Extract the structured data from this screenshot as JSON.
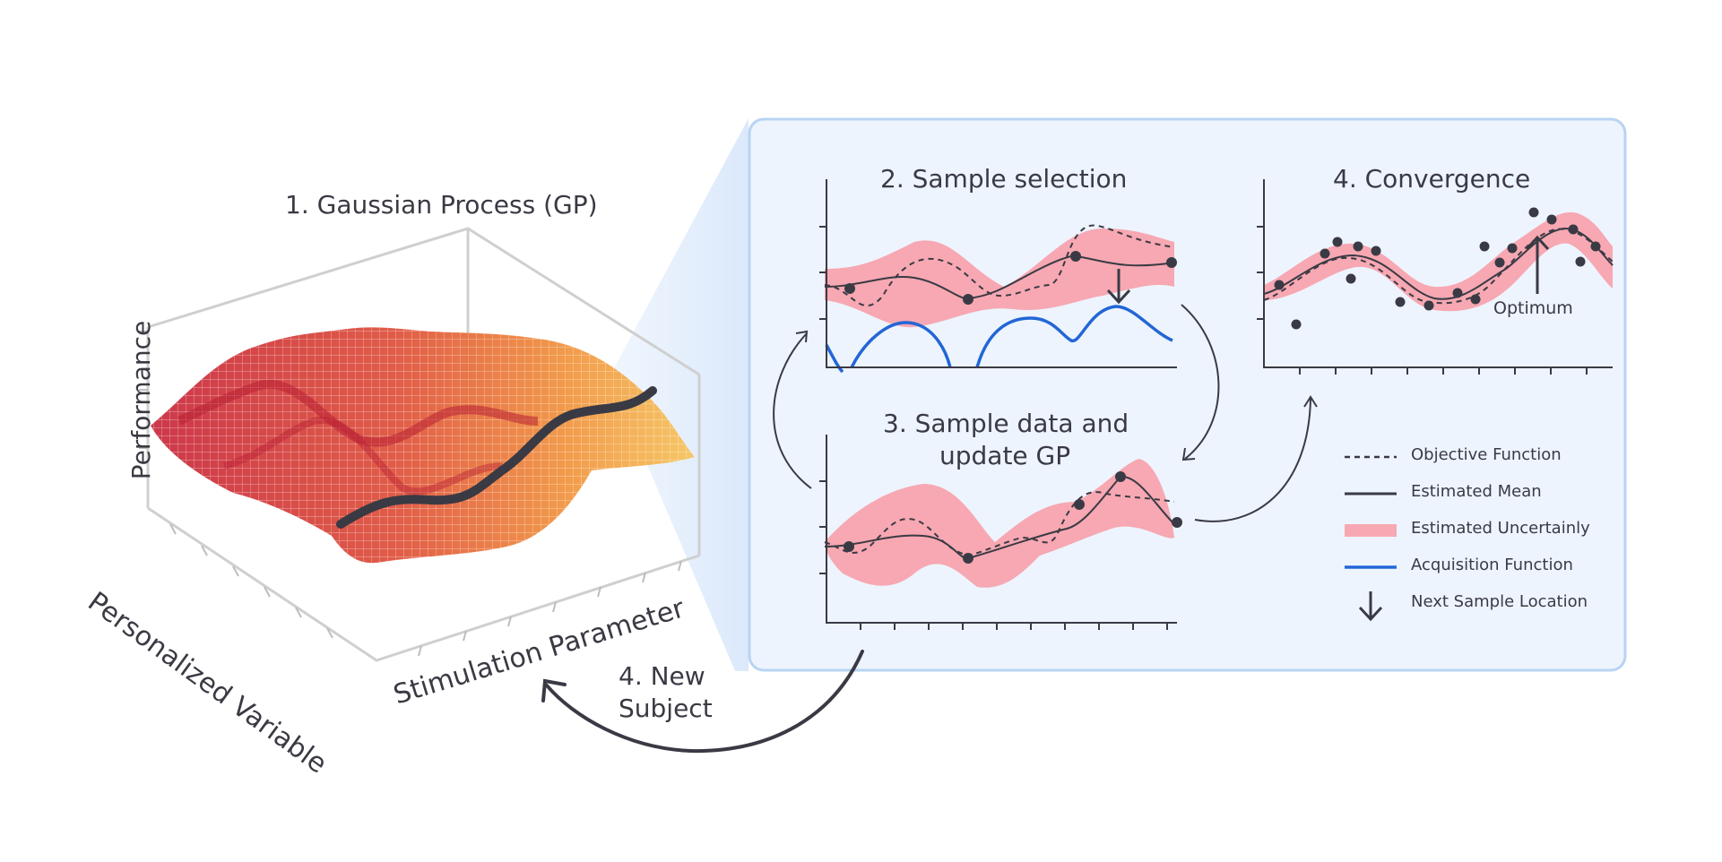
{
  "titles": {
    "gp": "1. Gaussian Process (GP)",
    "sample_selection": "2. Sample selection",
    "sample_data_line1": "3. Sample data and",
    "sample_data_line2": "update GP",
    "convergence": "4. Convergence",
    "new_subject_line1": "4. New",
    "new_subject_line2": "Subject"
  },
  "axes": {
    "performance": "Performance",
    "personalized": "Personalized Variable",
    "stimulation": "Stimulation Parameter"
  },
  "annotations": {
    "optimum": "Optimum"
  },
  "legend": [
    {
      "label": "Objective Function",
      "icon": "dashed-line-icon"
    },
    {
      "label": "Estimated Mean",
      "icon": "solid-line-icon"
    },
    {
      "label": "Estimated Uncertainly",
      "icon": "band-swatch-icon"
    },
    {
      "label": "Acquisition Function",
      "icon": "blue-line-icon"
    },
    {
      "label": "Next Sample Location",
      "icon": "down-arrow-icon"
    }
  ],
  "colors": {
    "uncertainty": "#f7a8b2",
    "mean": "#3a3a44",
    "acquisition": "#2266d6",
    "panel_bg": "#edf4fd",
    "panel_border": "#b8d4f2",
    "surface_red": "#c8263a",
    "surface_orange": "#f2a53a",
    "axis": "#3a3a44",
    "box": "#cfcfcf"
  }
}
